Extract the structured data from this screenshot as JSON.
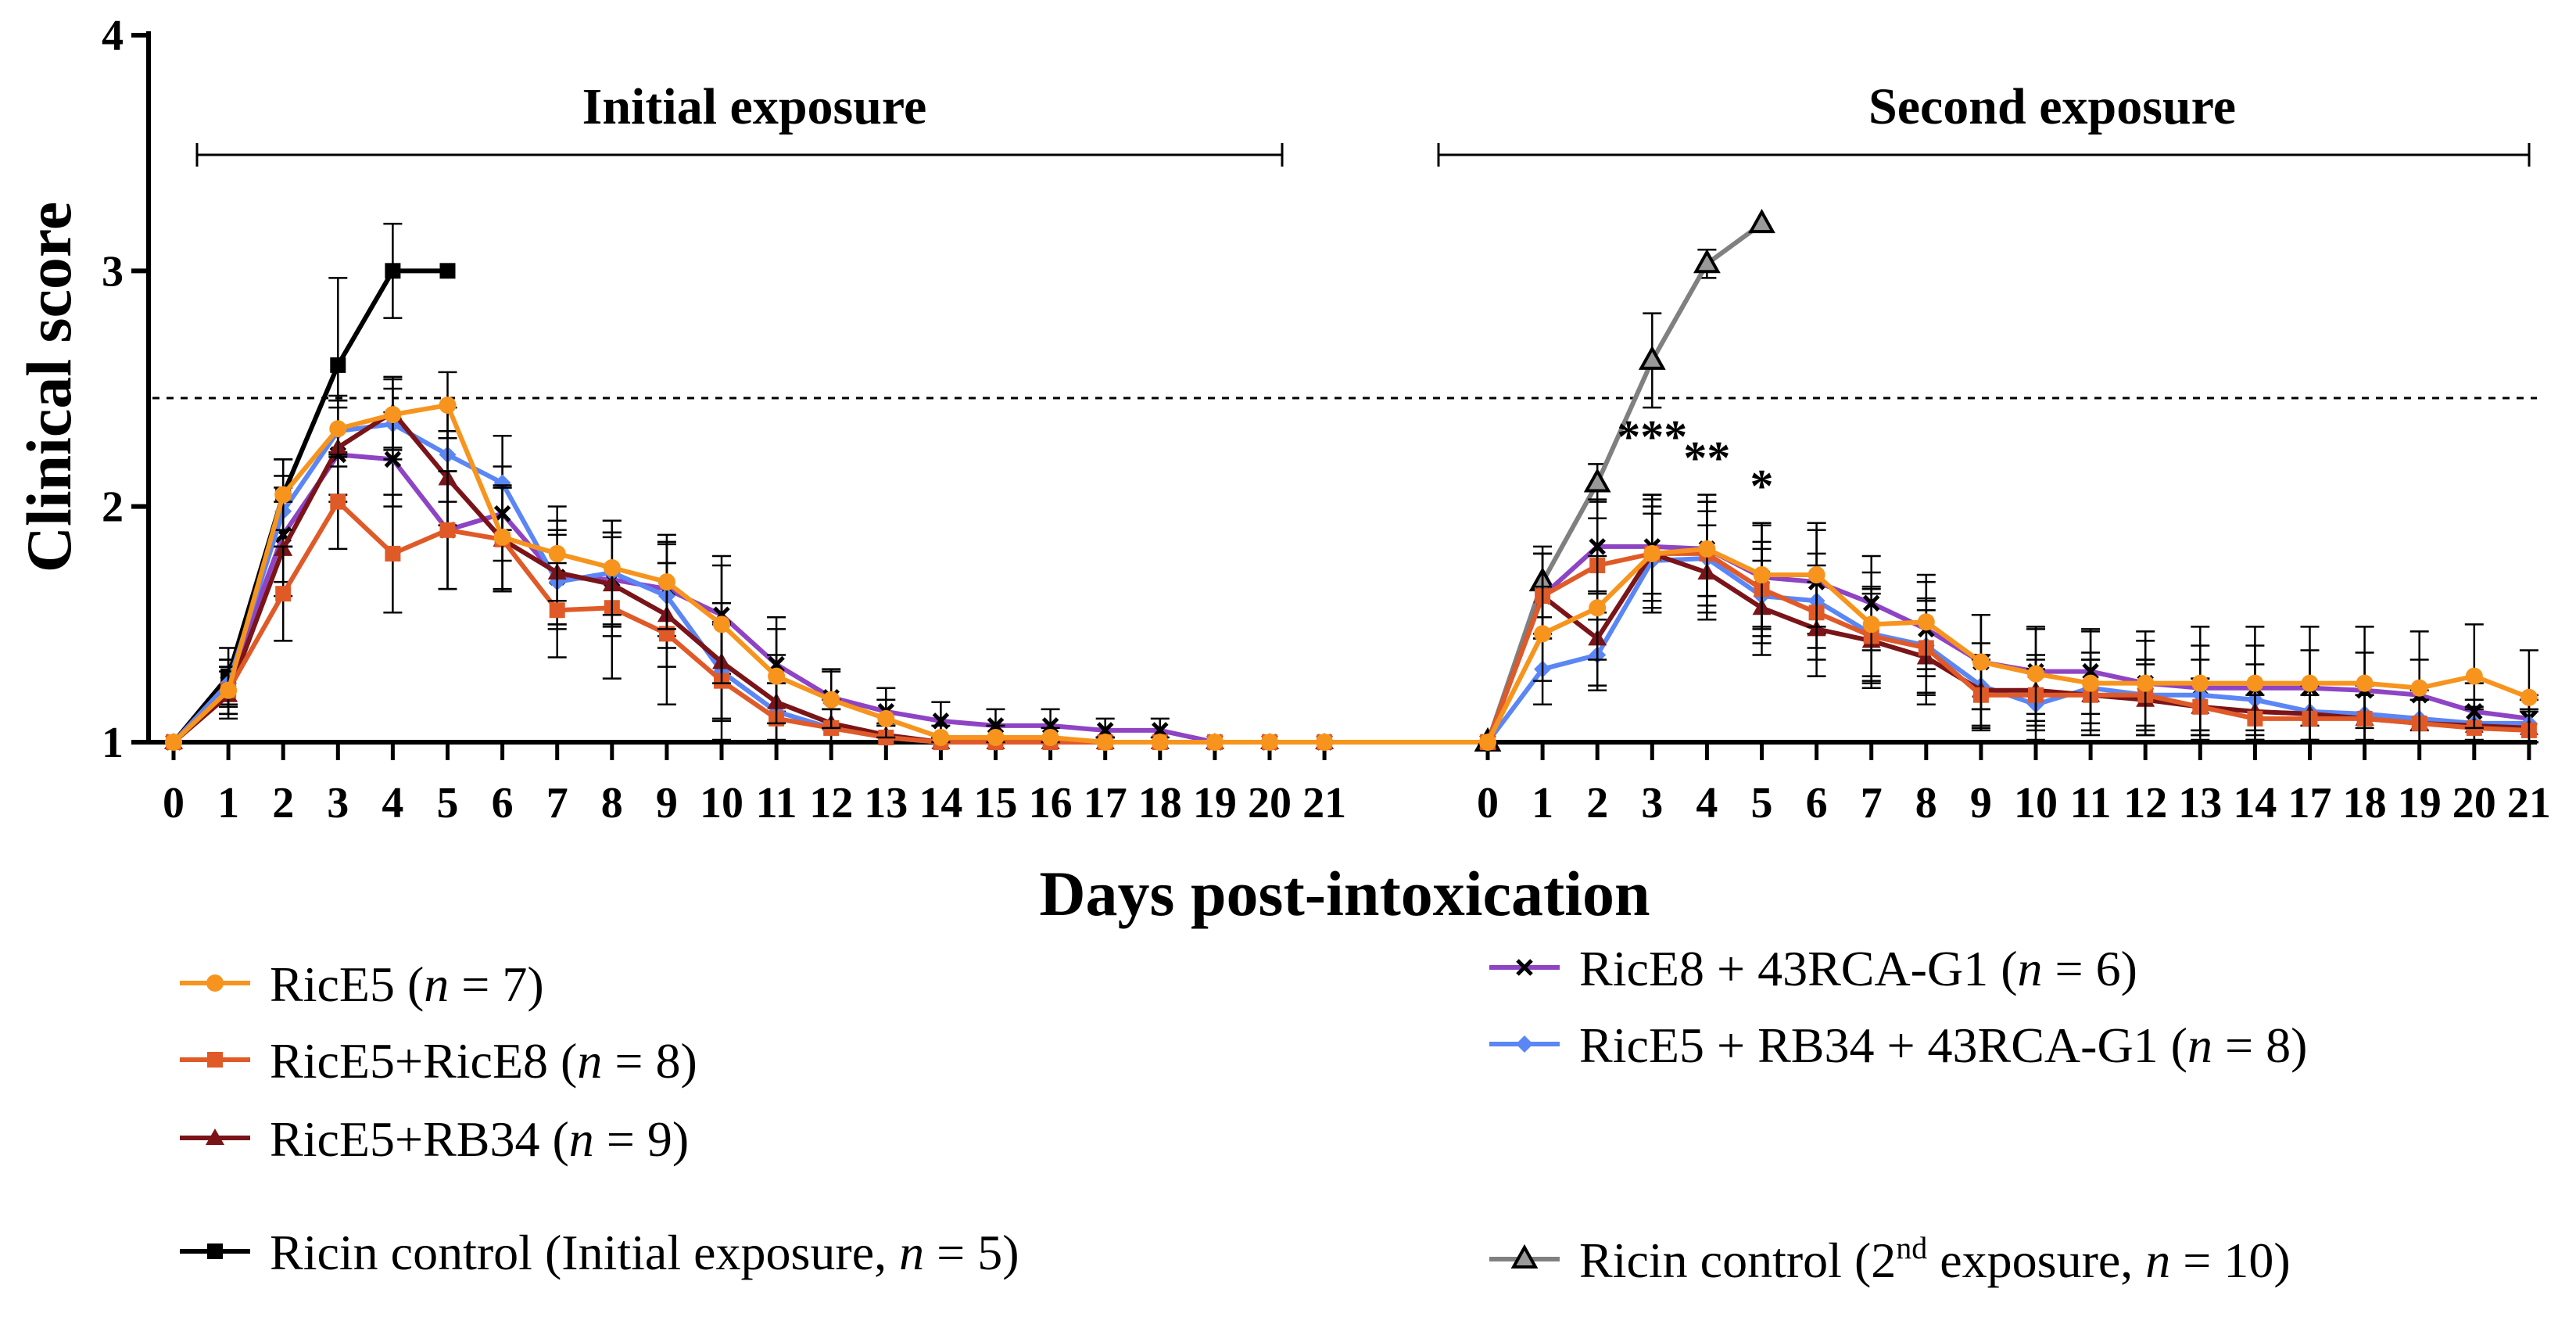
{
  "chart_data": {
    "type": "line",
    "ylabel": "Clinical score",
    "xlabel": "Days post-intoxication",
    "ylim": [
      1,
      4
    ],
    "yticks": [
      "1",
      "2",
      "3",
      "4"
    ],
    "panels": [
      {
        "key": "initial",
        "title": "Initial exposure",
        "x": [
          "0",
          "1",
          "2",
          "3",
          "4",
          "5",
          "6",
          "7",
          "8",
          "9",
          "10",
          "11",
          "12",
          "13",
          "14",
          "15",
          "16",
          "17",
          "18",
          "19",
          "20",
          "21"
        ]
      },
      {
        "key": "second",
        "title": "Second exposure",
        "x": [
          "0",
          "1",
          "2",
          "3",
          "4",
          "5",
          "6",
          "7",
          "8",
          "9",
          "10",
          "11",
          "12",
          "13",
          "14",
          "17",
          "18",
          "19",
          "20",
          "21"
        ]
      }
    ],
    "threshold": 2.46,
    "series": [
      {
        "name": "RicE5",
        "legend_suffix": "(n = 7)",
        "color": "#f7941d",
        "marker": "circle",
        "initial": [
          1.0,
          1.22,
          2.05,
          2.33,
          2.39,
          2.43,
          1.87,
          1.8,
          1.74,
          1.68,
          1.5,
          1.28,
          1.18,
          1.1,
          1.02,
          1.02,
          1.02,
          1.0,
          1.0,
          1.0,
          1.0,
          1.0
        ],
        "initial_err": [
          0,
          0.1,
          0.15,
          0.12,
          0.15,
          0.14,
          0.22,
          0.2,
          0.2,
          0.2,
          0.25,
          0.2,
          0.12,
          0.08,
          0.05,
          0.05,
          0.04,
          0.02,
          0.02,
          0,
          0,
          0
        ],
        "second": [
          1.0,
          1.46,
          1.57,
          1.8,
          1.82,
          1.71,
          1.71,
          1.5,
          1.51,
          1.34,
          1.29,
          1.25,
          1.25,
          1.25,
          1.25,
          1.25,
          1.25,
          1.23,
          1.28,
          1.19
        ],
        "second_err": [
          0,
          0.2,
          0.22,
          0.2,
          0.2,
          0.22,
          0.22,
          0.22,
          0.2,
          0.2,
          0.2,
          0.22,
          0.22,
          0.24,
          0.24,
          0.24,
          0.24,
          0.24,
          0.22,
          0.2
        ]
      },
      {
        "name": "RicE5+RicE8",
        "legend_suffix": "(n = 8)",
        "color": "#e05a28",
        "marker": "square",
        "initial": [
          1.0,
          1.22,
          1.63,
          2.02,
          1.8,
          1.9,
          1.86,
          1.56,
          1.57,
          1.46,
          1.26,
          1.1,
          1.06,
          1.02,
          1.0,
          1.0,
          1.0,
          1.0,
          1.0,
          1.0,
          1.0,
          1.0
        ],
        "initial_err": [
          0,
          0.1,
          0.2,
          0.2,
          0.25,
          0.25,
          0.22,
          0.2,
          0.3,
          0.3,
          0.25,
          0.15,
          0.08,
          0.05,
          0.02,
          0.02,
          0.02,
          0.02,
          0,
          0,
          0,
          0
        ],
        "second": [
          1.0,
          1.62,
          1.75,
          1.8,
          1.8,
          1.65,
          1.55,
          1.45,
          1.4,
          1.2,
          1.2,
          1.2,
          1.2,
          1.15,
          1.1,
          1.1,
          1.1,
          1.08,
          1.06,
          1.05
        ],
        "second_err": [
          0,
          0.18,
          0.2,
          0.25,
          0.25,
          0.2,
          0.2,
          0.2,
          0.2,
          0.15,
          0.15,
          0.15,
          0.15,
          0.12,
          0.1,
          0.1,
          0.1,
          0.1,
          0.08,
          0.08
        ]
      },
      {
        "name": "RicE5+RB34",
        "legend_suffix": "(n = 9)",
        "color": "#7a1418",
        "marker": "triangle",
        "initial": [
          1.0,
          1.2,
          1.82,
          2.25,
          2.4,
          2.12,
          1.86,
          1.72,
          1.67,
          1.54,
          1.34,
          1.17,
          1.08,
          1.03,
          1.0,
          1.0,
          1.0,
          1.0,
          1.0,
          1.0,
          1.0,
          1.0
        ],
        "initial_err": [
          0,
          0.1,
          0.2,
          0.2,
          0.15,
          0.2,
          0.22,
          0.22,
          0.22,
          0.22,
          0.25,
          0.2,
          0.1,
          0.05,
          0.02,
          0.02,
          0.02,
          0.02,
          0,
          0,
          0,
          0
        ],
        "second": [
          1.0,
          1.62,
          1.44,
          1.8,
          1.72,
          1.57,
          1.48,
          1.43,
          1.36,
          1.22,
          1.22,
          1.2,
          1.18,
          1.15,
          1.13,
          1.12,
          1.1,
          1.08,
          1.07,
          1.06
        ],
        "second_err": [
          0,
          0.18,
          0.2,
          0.25,
          0.2,
          0.2,
          0.2,
          0.2,
          0.2,
          0.15,
          0.15,
          0.15,
          0.15,
          0.12,
          0.12,
          0.12,
          0.1,
          0.1,
          0.08,
          0.08
        ]
      },
      {
        "name": "RicE8 + 43RCA-G1",
        "legend_suffix": "(n = 6)",
        "color": "#8e44c4",
        "marker": "cross",
        "initial": [
          1.0,
          1.25,
          1.88,
          2.22,
          2.2,
          1.9,
          1.97,
          1.7,
          1.69,
          1.65,
          1.54,
          1.33,
          1.19,
          1.13,
          1.09,
          1.07,
          1.07,
          1.05,
          1.05,
          1.0,
          1.0,
          1.0
        ],
        "initial_err": [
          0,
          0.1,
          0.2,
          0.2,
          0.2,
          0.25,
          0.2,
          0.2,
          0.2,
          0.2,
          0.25,
          0.2,
          0.12,
          0.1,
          0.08,
          0.07,
          0.07,
          0.05,
          0.05,
          0,
          0,
          0
        ],
        "second": [
          1.0,
          1.62,
          1.83,
          1.83,
          1.82,
          1.7,
          1.68,
          1.59,
          1.48,
          1.34,
          1.3,
          1.3,
          1.25,
          1.23,
          1.23,
          1.23,
          1.22,
          1.2,
          1.13,
          1.1
        ],
        "second_err": [
          0,
          0.18,
          0.2,
          0.2,
          0.2,
          0.22,
          0.22,
          0.2,
          0.2,
          0.2,
          0.18,
          0.18,
          0.18,
          0.18,
          0.18,
          0.16,
          0.16,
          0.15,
          0.12,
          0.1
        ]
      },
      {
        "name": "RicE5 + RB34 + 43RCA-G1",
        "legend_suffix": "(n = 8)",
        "color": "#5b86f5",
        "marker": "diamond",
        "initial": [
          1.0,
          1.25,
          1.98,
          2.32,
          2.35,
          2.22,
          2.1,
          1.68,
          1.72,
          1.62,
          1.3,
          1.13,
          1.06,
          1.02,
          1.0,
          1.0,
          1.0,
          1.0,
          1.0,
          1.0,
          1.0,
          1.0
        ],
        "initial_err": [
          0,
          0.1,
          0.15,
          0.15,
          0.15,
          0.2,
          0.2,
          0.2,
          0.22,
          0.22,
          0.2,
          0.12,
          0.08,
          0.05,
          0.02,
          0.02,
          0.02,
          0.02,
          0,
          0,
          0,
          0
        ],
        "second": [
          1.0,
          1.31,
          1.37,
          1.77,
          1.78,
          1.62,
          1.6,
          1.46,
          1.41,
          1.24,
          1.16,
          1.23,
          1.2,
          1.2,
          1.18,
          1.13,
          1.12,
          1.1,
          1.08,
          1.08
        ],
        "second_err": [
          0,
          0.15,
          0.15,
          0.2,
          0.2,
          0.2,
          0.2,
          0.2,
          0.2,
          0.18,
          0.15,
          0.15,
          0.15,
          0.15,
          0.15,
          0.12,
          0.12,
          0.12,
          0.1,
          0.1
        ]
      },
      {
        "name": "Ricin control",
        "legend_label": "Ricin control (Initial exposure, ",
        "legend_n": "n",
        "legend_end": " = 5)",
        "color": "#000000",
        "marker": "square",
        "panel": "initial",
        "x_index": [
          0,
          1,
          2,
          3,
          4,
          5
        ],
        "values": [
          1.0,
          1.28,
          2.05,
          2.6,
          3.0,
          3.0
        ],
        "err": [
          0,
          0.12,
          0.15,
          0.37,
          0.2,
          0
        ]
      },
      {
        "name": "Ricin control 2nd",
        "legend_label": "Ricin control (2",
        "legend_sup": "nd",
        "legend_mid": " exposure, ",
        "legend_n": "n",
        "legend_end": " = 10)",
        "color": "#808080",
        "marker": "triangle-open",
        "panel": "second",
        "x_index": [
          0,
          1,
          2,
          3,
          4,
          5
        ],
        "values": [
          1.0,
          1.68,
          2.1,
          2.62,
          3.03,
          3.2
        ],
        "err": [
          0,
          0.15,
          0.08,
          0.2,
          0.06,
          0
        ]
      }
    ],
    "annotations": [
      {
        "text": "***",
        "panel": "second",
        "x_index": 3,
        "y": 2.23
      },
      {
        "text": "**",
        "panel": "second",
        "x_index": 4,
        "y": 2.14
      },
      {
        "text": "*",
        "panel": "second",
        "x_index": 5,
        "y": 2.02
      }
    ]
  }
}
